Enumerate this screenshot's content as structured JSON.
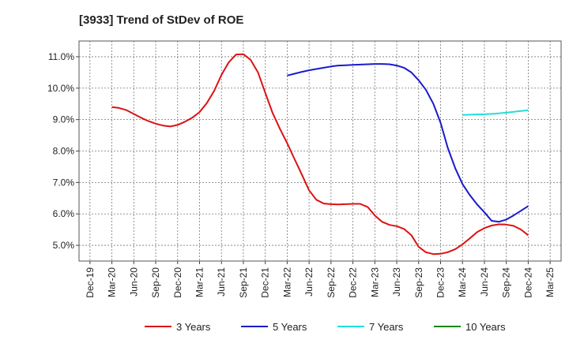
{
  "chart_data": {
    "type": "line",
    "title": "[3933]  Trend of StDev of ROE",
    "xlabel": "",
    "ylabel": "",
    "x_ticks": [
      "Dec-19",
      "Mar-20",
      "Jun-20",
      "Sep-20",
      "Dec-20",
      "Mar-21",
      "Jun-21",
      "Sep-21",
      "Dec-21",
      "Mar-22",
      "Jun-22",
      "Sep-22",
      "Dec-22",
      "Mar-23",
      "Jun-23",
      "Sep-23",
      "Dec-23",
      "Mar-24",
      "Jun-24",
      "Sep-24",
      "Dec-24",
      "Mar-25"
    ],
    "y_ticks": [
      "5.0%",
      "6.0%",
      "7.0%",
      "8.0%",
      "9.0%",
      "10.0%",
      "11.0%"
    ],
    "y_tick_values": [
      5.0,
      6.0,
      7.0,
      8.0,
      9.0,
      10.0,
      11.0
    ],
    "ylim": [
      4.5,
      11.5
    ],
    "grid": true,
    "legend_position": "bottom",
    "series": [
      {
        "name": "3 Years",
        "color": "#dd1111",
        "x": [
          1,
          1.33,
          1.67,
          2,
          2.33,
          2.67,
          3,
          3.33,
          3.67,
          4,
          4.33,
          4.67,
          5,
          5.33,
          5.67,
          6,
          6.33,
          6.67,
          7,
          7.33,
          7.67,
          8,
          8.33,
          8.67,
          9,
          9.33,
          9.67,
          10,
          10.33,
          10.67,
          11,
          11.33,
          11.67,
          12,
          12.33,
          12.67,
          13,
          13.33,
          13.67,
          14,
          14.33,
          14.67,
          15,
          15.33,
          15.67,
          16,
          16.33,
          16.67,
          17,
          17.33,
          17.67,
          18,
          18.33,
          18.67,
          19,
          19.33,
          19.67,
          20
        ],
        "values": [
          9.4,
          9.37,
          9.3,
          9.18,
          9.06,
          8.95,
          8.87,
          8.81,
          8.78,
          8.83,
          8.93,
          9.06,
          9.24,
          9.52,
          9.92,
          10.42,
          10.82,
          11.07,
          11.08,
          10.9,
          10.5,
          9.85,
          9.22,
          8.7,
          8.25,
          7.75,
          7.25,
          6.75,
          6.45,
          6.33,
          6.31,
          6.3,
          6.31,
          6.32,
          6.32,
          6.22,
          5.95,
          5.75,
          5.65,
          5.61,
          5.52,
          5.32,
          4.95,
          4.78,
          4.72,
          4.73,
          4.78,
          4.88,
          5.03,
          5.22,
          5.42,
          5.55,
          5.63,
          5.67,
          5.66,
          5.62,
          5.5,
          5.32
        ]
      },
      {
        "name": "5 Years",
        "color": "#1a1acc",
        "x": [
          9,
          9.33,
          9.67,
          10,
          10.33,
          10.67,
          11,
          11.33,
          11.67,
          12,
          12.33,
          12.67,
          13,
          13.33,
          13.67,
          14,
          14.33,
          14.67,
          15,
          15.33,
          15.67,
          16,
          16.33,
          16.67,
          17,
          17.33,
          17.67,
          18,
          18.33,
          18.67,
          19,
          19.33,
          19.67,
          20
        ],
        "values": [
          10.4,
          10.46,
          10.52,
          10.57,
          10.61,
          10.65,
          10.69,
          10.72,
          10.73,
          10.74,
          10.75,
          10.76,
          10.77,
          10.77,
          10.76,
          10.72,
          10.65,
          10.5,
          10.25,
          9.95,
          9.5,
          8.9,
          8.1,
          7.45,
          6.95,
          6.6,
          6.3,
          6.05,
          5.78,
          5.75,
          5.82,
          5.95,
          6.1,
          6.25
        ]
      },
      {
        "name": "7 Years",
        "color": "#22dddd",
        "x": [
          17,
          17.5,
          18,
          18.5,
          19,
          19.5,
          20
        ],
        "values": [
          9.15,
          9.16,
          9.17,
          9.19,
          9.22,
          9.26,
          9.3
        ]
      },
      {
        "name": "10 Years",
        "color": "#118811",
        "x": [],
        "values": []
      }
    ]
  }
}
